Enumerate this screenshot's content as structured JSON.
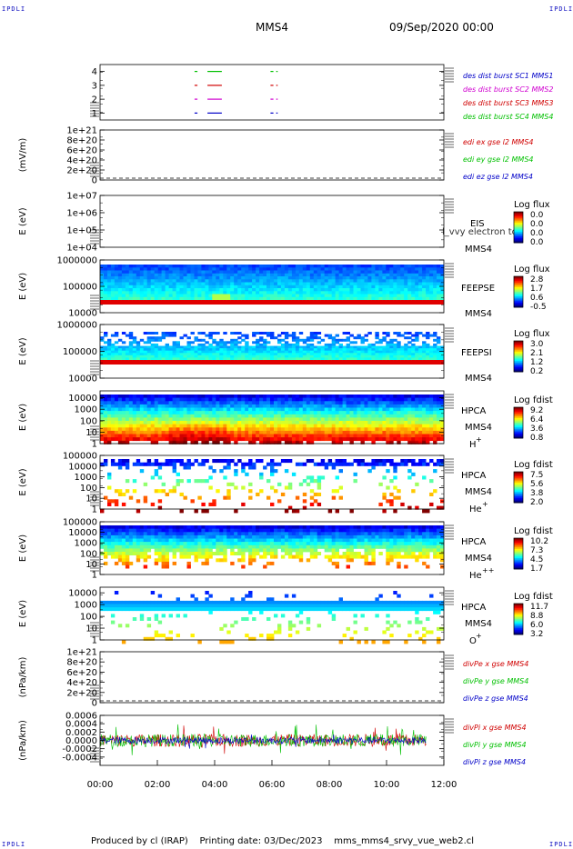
{
  "header": {
    "corner_label": "IPDLI",
    "spacecraft": "MMS4",
    "datetime": "09/Sep/2020 00:00"
  },
  "footer": {
    "produced_by": "Produced by cl (IRAP)",
    "printing_date": "Printing date: 03/Dec/2023",
    "filename": "mms_mms4_srvy_vue_web2.cl"
  },
  "chart_data": [
    {
      "type": "line",
      "id": "burst",
      "ylabel": "",
      "yticks": [
        "1",
        "2",
        "3",
        "4"
      ],
      "ylim": [
        0.5,
        4.5
      ],
      "legend": [
        {
          "text": "des dist burst SC1 MMS1",
          "color": "#0000c8"
        },
        {
          "text": "des dist burst SC2 MMS2",
          "color": "#d000d0"
        },
        {
          "text": "des dist burst SC3 MMS3",
          "color": "#d00000"
        },
        {
          "text": "des dist burst SC4 MMS4",
          "color": "#00c000"
        }
      ],
      "series": [
        {
          "name": "des dist burst SC4 MMS4",
          "level": 4,
          "intervals": [
            [
              3.3,
              3.4
            ],
            [
              3.75,
              4.25
            ],
            [
              5.95,
              6.05
            ],
            [
              6.15,
              6.2
            ]
          ]
        },
        {
          "name": "des dist burst SC3 MMS3",
          "level": 3,
          "intervals": [
            [
              3.3,
              3.4
            ],
            [
              3.75,
              4.25
            ],
            [
              5.95,
              6.05
            ],
            [
              6.15,
              6.2
            ]
          ]
        },
        {
          "name": "des dist burst SC2 MMS2",
          "level": 2,
          "intervals": [
            [
              3.3,
              3.4
            ],
            [
              3.75,
              4.25
            ],
            [
              5.95,
              6.05
            ],
            [
              6.15,
              6.2
            ]
          ]
        },
        {
          "name": "des dist burst SC1 MMS1",
          "level": 1,
          "intervals": [
            [
              3.3,
              3.4
            ],
            [
              3.75,
              4.25
            ],
            [
              5.95,
              6.05
            ],
            [
              6.15,
              6.2
            ]
          ]
        }
      ]
    },
    {
      "type": "line",
      "id": "edi",
      "ylabel": "(mV/m)",
      "yticks": [
        "0",
        "2e+20",
        "4e+20",
        "6e+20",
        "8e+20",
        "1e+21"
      ],
      "ylim": [
        0,
        1e+21
      ],
      "legend": [
        {
          "text": "edi ex gse l2 MMS4",
          "color": "#d00000"
        },
        {
          "text": "edi ey gse l2 MMS4",
          "color": "#00c000"
        },
        {
          "text": "edi ez gse l2 MMS4",
          "color": "#0000c8"
        }
      ],
      "series": []
    },
    {
      "type": "heatmap",
      "id": "eis",
      "ylabel": "E (eV)",
      "yticks": [
        "1e+04",
        "1e+05",
        "1e+06",
        "1e+07"
      ],
      "ylim": [
        10000,
        10000000
      ],
      "instrument": "EIS",
      "spacecraft": "MMS4",
      "overlap_text": "l_vvy electron to",
      "colorbar": {
        "title": "Log flux",
        "ticks": [
          "0.0",
          "0.0",
          "0.0",
          "0.0"
        ]
      }
    },
    {
      "type": "heatmap",
      "id": "feepse",
      "ylabel": "E (eV)",
      "yticks": [
        "10000",
        "100000",
        "1000000"
      ],
      "ylim": [
        10000,
        1000000
      ],
      "instrument": "FEEPSE",
      "spacecraft": "MMS4",
      "colorbar": {
        "title": "Log flux",
        "ticks": [
          "-0.5",
          "0.6",
          "1.7",
          "2.8"
        ]
      }
    },
    {
      "type": "heatmap",
      "id": "feepsi",
      "ylabel": "E (eV)",
      "yticks": [
        "10000",
        "100000",
        "1000000"
      ],
      "ylim": [
        10000,
        1000000
      ],
      "instrument": "FEEPSI",
      "spacecraft": "MMS4",
      "colorbar": {
        "title": "Log flux",
        "ticks": [
          "0.2",
          "1.2",
          "2.1",
          "3.0"
        ]
      }
    },
    {
      "type": "heatmap",
      "id": "hpca_h",
      "ylabel": "E (eV)",
      "yticks": [
        "1",
        "10",
        "100",
        "1000",
        "10000"
      ],
      "ylim": [
        1,
        40000
      ],
      "instrument": "HPCA",
      "spacecraft": "MMS4",
      "species": "H",
      "charge": "+",
      "colorbar": {
        "title": "Log fdist",
        "ticks": [
          "0.8",
          "3.6",
          "6.4",
          "9.2"
        ]
      }
    },
    {
      "type": "heatmap",
      "id": "hpca_he",
      "ylabel": "E (eV)",
      "yticks": [
        "1",
        "10",
        "100",
        "1000",
        "10000",
        "100000"
      ],
      "ylim": [
        1,
        100000
      ],
      "instrument": "HPCA",
      "spacecraft": "MMS4",
      "species": "He",
      "charge": "+",
      "colorbar": {
        "title": "Log fdist",
        "ticks": [
          "2.0",
          "3.8",
          "5.6",
          "7.5"
        ]
      }
    },
    {
      "type": "heatmap",
      "id": "hpca_hepp",
      "ylabel": "E (eV)",
      "yticks": [
        "1",
        "10",
        "100",
        "1000",
        "10000",
        "100000"
      ],
      "ylim": [
        1,
        100000
      ],
      "instrument": "HPCA",
      "spacecraft": "MMS4",
      "species": "He",
      "charge": "++",
      "colorbar": {
        "title": "Log fdist",
        "ticks": [
          "1.7",
          "4.5",
          "7.3",
          "10.2"
        ]
      }
    },
    {
      "type": "heatmap",
      "id": "hpca_o",
      "ylabel": "E (eV)",
      "yticks": [
        "1",
        "10",
        "100",
        "1000",
        "10000"
      ],
      "ylim": [
        1,
        30000
      ],
      "instrument": "HPCA",
      "spacecraft": "MMS4",
      "species": "O",
      "charge": "+",
      "colorbar": {
        "title": "Log fdist",
        "ticks": [
          "3.2",
          "6.0",
          "8.8",
          "11.7"
        ]
      }
    },
    {
      "type": "line",
      "id": "divpe",
      "ylabel": "(nPa/km)",
      "yticks": [
        "0",
        "2e+20",
        "4e+20",
        "6e+20",
        "8e+20",
        "1e+21"
      ],
      "ylim": [
        0,
        1e+21
      ],
      "legend": [
        {
          "text": "divPe x gse MMS4",
          "color": "#d00000"
        },
        {
          "text": "divPe y gse MMS4",
          "color": "#00c000"
        },
        {
          "text": "divPe z gse MMS4",
          "color": "#0000c8"
        }
      ],
      "series": []
    },
    {
      "type": "line",
      "id": "divpi",
      "ylabel": "(nPa/km)",
      "yticks": [
        "-0.0004",
        "-0.0002",
        "0.0000",
        "0.0002",
        "0.0004",
        "0.0006"
      ],
      "ylim": [
        -0.0006,
        0.0006
      ],
      "legend": [
        {
          "text": "divPi x gse MMS4",
          "color": "#d00000"
        },
        {
          "text": "divPi y gse MMS4",
          "color": "#00c000"
        },
        {
          "text": "divPi z gse MMS4",
          "color": "#0000c8"
        }
      ],
      "series": [
        {
          "name": "divPi x gse MMS4",
          "x_range": [
            0,
            11.4
          ],
          "amplitude": 0.00015
        },
        {
          "name": "divPi y gse MMS4",
          "x_range": [
            0,
            11.4
          ],
          "amplitude": 0.00015
        },
        {
          "name": "divPi z gse MMS4",
          "x_range": [
            0,
            11.4
          ],
          "amplitude": 8e-05
        }
      ]
    }
  ],
  "x_axis": {
    "ticks": [
      "00:00",
      "02:00",
      "04:00",
      "06:00",
      "08:00",
      "10:00",
      "12:00"
    ],
    "xlim": [
      0,
      12
    ],
    "unit": "hours"
  }
}
